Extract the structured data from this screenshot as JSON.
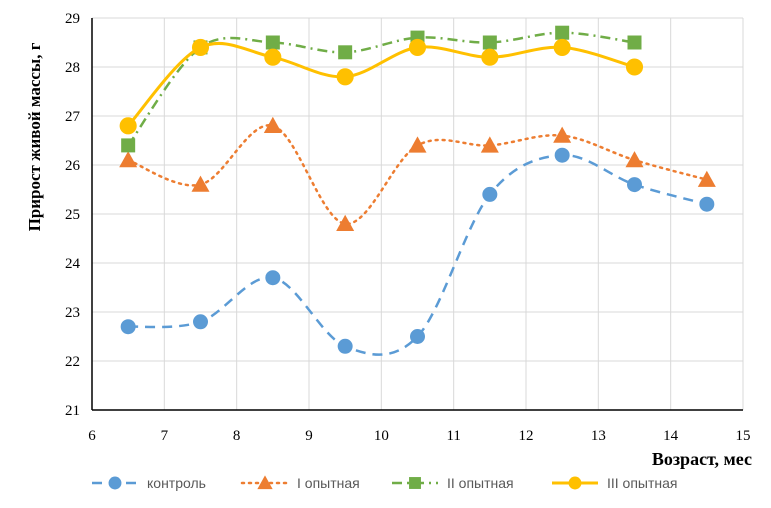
{
  "chart_data": {
    "type": "line",
    "xlabel": "Возраст, мес",
    "ylabel": "Прирост живой массы, г",
    "xlim": [
      6,
      15
    ],
    "ylim": [
      21,
      29
    ],
    "xticks": [
      "6",
      "7",
      "8",
      "9",
      "10",
      "11",
      "12",
      "13",
      "14",
      "15"
    ],
    "yticks": [
      "21",
      "22",
      "23",
      "24",
      "25",
      "26",
      "27",
      "28",
      "29"
    ],
    "legend_position": "bottom",
    "series": [
      {
        "name": "контроль",
        "color": "#5B9BD5",
        "marker": "circle",
        "line": "dashed",
        "x": [
          6.5,
          7.5,
          8.5,
          9.5,
          10.5,
          11.5,
          12.5,
          13.5,
          14.5
        ],
        "y": [
          22.7,
          22.8,
          23.7,
          22.3,
          22.5,
          25.4,
          26.2,
          25.6,
          25.2
        ]
      },
      {
        "name": "I опытная",
        "color": "#ED7D31",
        "marker": "triangle",
        "line": "dotted",
        "x": [
          6.5,
          7.5,
          8.5,
          9.5,
          10.5,
          11.5,
          12.5,
          13.5,
          14.5
        ],
        "y": [
          26.1,
          25.6,
          26.8,
          24.8,
          26.4,
          26.4,
          26.6,
          26.1,
          25.7
        ]
      },
      {
        "name": "II опытная",
        "color": "#70AD47",
        "marker": "square",
        "line": "dashdot",
        "x": [
          6.5,
          7.5,
          8.5,
          9.5,
          10.5,
          11.5,
          12.5,
          13.5
        ],
        "y": [
          26.4,
          28.4,
          28.5,
          28.3,
          28.6,
          28.5,
          28.7,
          28.5
        ]
      },
      {
        "name": "III опытная",
        "color": "#FFC000",
        "marker": "circle",
        "line": "solid",
        "x": [
          6.5,
          7.5,
          8.5,
          9.5,
          10.5,
          11.5,
          12.5,
          13.5
        ],
        "y": [
          26.8,
          28.4,
          28.2,
          27.8,
          28.4,
          28.2,
          28.4,
          28.0
        ]
      }
    ]
  }
}
